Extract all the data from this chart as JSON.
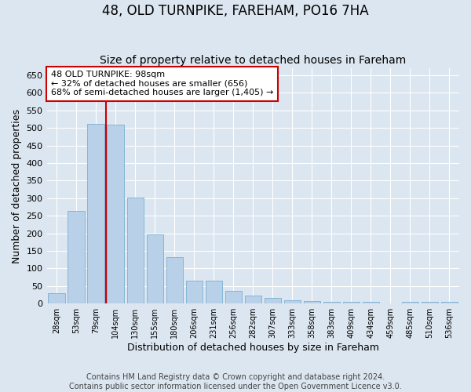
{
  "title1": "48, OLD TURNPIKE, FAREHAM, PO16 7HA",
  "title2": "Size of property relative to detached houses in Fareham",
  "xlabel": "Distribution of detached houses by size in Fareham",
  "ylabel": "Number of detached properties",
  "categories": [
    "28sqm",
    "53sqm",
    "79sqm",
    "104sqm",
    "130sqm",
    "155sqm",
    "180sqm",
    "206sqm",
    "231sqm",
    "256sqm",
    "282sqm",
    "307sqm",
    "333sqm",
    "358sqm",
    "383sqm",
    "409sqm",
    "434sqm",
    "459sqm",
    "485sqm",
    "510sqm",
    "536sqm"
  ],
  "values": [
    30,
    263,
    512,
    510,
    301,
    196,
    132,
    65,
    65,
    37,
    22,
    16,
    10,
    8,
    5,
    5,
    4,
    0,
    4,
    4,
    5
  ],
  "bar_color": "#b8d0e8",
  "bar_edge_color": "#7aafd4",
  "vline_x": 2.5,
  "vline_color": "#cc0000",
  "annotation_text": "48 OLD TURNPIKE: 98sqm\n← 32% of detached houses are smaller (656)\n68% of semi-detached houses are larger (1,405) →",
  "annotation_box_color": "white",
  "annotation_box_edge": "#cc0000",
  "ylim": [
    0,
    670
  ],
  "yticks": [
    0,
    50,
    100,
    150,
    200,
    250,
    300,
    350,
    400,
    450,
    500,
    550,
    600,
    650
  ],
  "background_color": "#dce6f0",
  "plot_bg_color": "#dce6f0",
  "footer_text": "Contains HM Land Registry data © Crown copyright and database right 2024.\nContains public sector information licensed under the Open Government Licence v3.0.",
  "title1_fontsize": 12,
  "title2_fontsize": 10,
  "xlabel_fontsize": 9,
  "ylabel_fontsize": 9,
  "footer_fontsize": 7,
  "annot_fontsize": 8
}
